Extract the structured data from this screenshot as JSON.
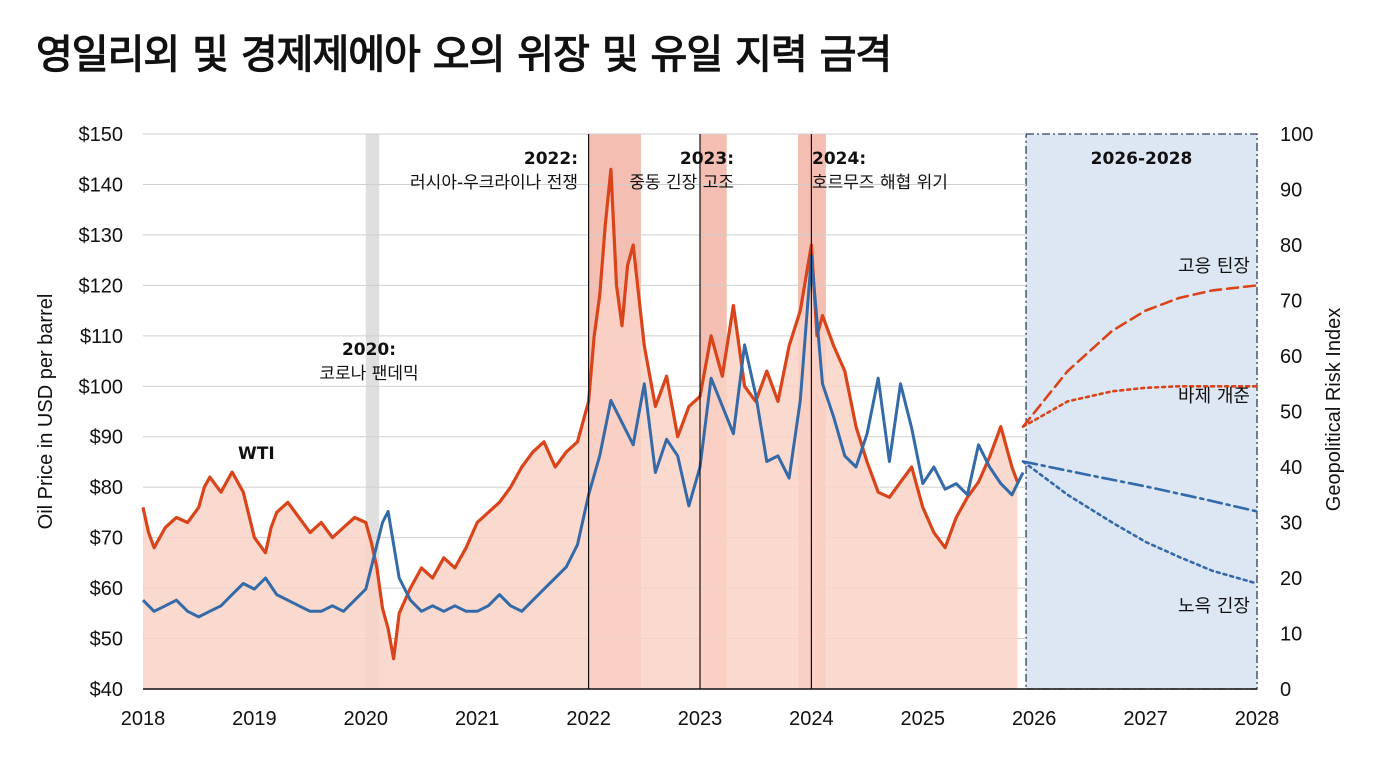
{
  "chart_data": {
    "type": "line",
    "title": "영일리외 및 경제제에아 오의 위장 및 유일 지력 금격",
    "ylabel": "Oil Price in USD per barrel",
    "y2label": "Geopolitical Risk Index",
    "x_ticks": [
      "2018",
      "2019",
      "2020",
      "2021",
      "2022",
      "2023",
      "2024",
      "2025",
      "2026",
      "2027",
      "2028"
    ],
    "xlim": [
      2018,
      2028
    ],
    "ylim": [
      40,
      150
    ],
    "y_ticks": [
      "$40",
      "$50",
      "$60",
      "$70",
      "$80",
      "$90",
      "$100",
      "$110",
      "$120",
      "$130",
      "$140",
      "$150"
    ],
    "y2lim": [
      0,
      100
    ],
    "y2_ticks": [
      "0",
      "10",
      "20",
      "30",
      "40",
      "50",
      "60",
      "70",
      "80",
      "90",
      "100"
    ],
    "grid": true,
    "colors": {
      "oil": "#d9441b",
      "oil_fill": "#f9d2c6",
      "risk": "#356aa8",
      "shade_event": "#f2b4a4",
      "shade_covid": "#d9d9d9",
      "forecast_bg": "#dde7f3"
    },
    "series": [
      {
        "name": "WTI",
        "axis": "left",
        "x": [
          2018.0,
          2018.05,
          2018.1,
          2018.2,
          2018.3,
          2018.4,
          2018.5,
          2018.55,
          2018.6,
          2018.7,
          2018.8,
          2018.9,
          2019.0,
          2019.1,
          2019.15,
          2019.2,
          2019.3,
          2019.4,
          2019.5,
          2019.6,
          2019.7,
          2019.8,
          2019.9,
          2020.0,
          2020.05,
          2020.1,
          2020.15,
          2020.2,
          2020.25,
          2020.3,
          2020.4,
          2020.5,
          2020.6,
          2020.7,
          2020.8,
          2020.9,
          2021.0,
          2021.1,
          2021.2,
          2021.3,
          2021.4,
          2021.5,
          2021.6,
          2021.7,
          2021.8,
          2021.9,
          2022.0,
          2022.05,
          2022.1,
          2022.15,
          2022.2,
          2022.25,
          2022.3,
          2022.35,
          2022.4,
          2022.45,
          2022.5,
          2022.6,
          2022.7,
          2022.8,
          2022.9,
          2023.0,
          2023.05,
          2023.1,
          2023.2,
          2023.3,
          2023.4,
          2023.5,
          2023.6,
          2023.7,
          2023.8,
          2023.9,
          2024.0,
          2024.05,
          2024.1,
          2024.2,
          2024.3,
          2024.4,
          2024.5,
          2024.6,
          2024.7,
          2024.8,
          2024.9,
          2025.0,
          2025.1,
          2025.2,
          2025.3,
          2025.4,
          2025.5,
          2025.6,
          2025.7,
          2025.8,
          2025.85
        ],
        "values": [
          76,
          71,
          68,
          72,
          74,
          73,
          76,
          80,
          82,
          79,
          83,
          79,
          70,
          67,
          72,
          75,
          77,
          74,
          71,
          73,
          70,
          72,
          74,
          73,
          69,
          64,
          56,
          52,
          46,
          55,
          60,
          64,
          62,
          66,
          64,
          68,
          73,
          75,
          77,
          80,
          84,
          87,
          89,
          84,
          87,
          89,
          97,
          110,
          118,
          132,
          143,
          120,
          112,
          124,
          128,
          118,
          108,
          96,
          102,
          90,
          96,
          98,
          104,
          110,
          102,
          116,
          100,
          97,
          103,
          97,
          108,
          115,
          128,
          110,
          114,
          108,
          103,
          92,
          85,
          79,
          78,
          81,
          84,
          76,
          71,
          68,
          74,
          78,
          81,
          86,
          92,
          84,
          81
        ]
      },
      {
        "name": "",
        "axis": "right",
        "x": [
          2018.0,
          2018.1,
          2018.2,
          2018.3,
          2018.4,
          2018.5,
          2018.6,
          2018.7,
          2018.8,
          2018.9,
          2019.0,
          2019.1,
          2019.2,
          2019.3,
          2019.4,
          2019.5,
          2019.6,
          2019.7,
          2019.8,
          2019.9,
          2020.0,
          2020.05,
          2020.1,
          2020.15,
          2020.2,
          2020.3,
          2020.4,
          2020.5,
          2020.6,
          2020.7,
          2020.8,
          2020.9,
          2021.0,
          2021.1,
          2021.2,
          2021.3,
          2021.4,
          2021.5,
          2021.6,
          2021.7,
          2021.8,
          2021.9,
          2022.0,
          2022.1,
          2022.2,
          2022.3,
          2022.4,
          2022.5,
          2022.6,
          2022.7,
          2022.8,
          2022.9,
          2023.0,
          2023.1,
          2023.2,
          2023.3,
          2023.4,
          2023.5,
          2023.6,
          2023.7,
          2023.8,
          2023.9,
          2024.0,
          2024.1,
          2024.2,
          2024.3,
          2024.4,
          2024.5,
          2024.6,
          2024.7,
          2024.8,
          2024.9,
          2025.0,
          2025.1,
          2025.2,
          2025.3,
          2025.4,
          2025.5,
          2025.6,
          2025.7,
          2025.8,
          2025.9
        ],
        "values": [
          16,
          14,
          15,
          16,
          14,
          13,
          14,
          15,
          17,
          19,
          18,
          20,
          17,
          16,
          15,
          14,
          14,
          15,
          14,
          16,
          18,
          22,
          26,
          30,
          32,
          20,
          16,
          14,
          15,
          14,
          15,
          14,
          14,
          15,
          17,
          15,
          14,
          16,
          18,
          20,
          22,
          26,
          35,
          42,
          52,
          48,
          44,
          55,
          39,
          45,
          42,
          33,
          40,
          56,
          51,
          46,
          62,
          53,
          41,
          42,
          38,
          52,
          78,
          55,
          49,
          42,
          40,
          46,
          56,
          41,
          55,
          47,
          37,
          40,
          36,
          37,
          35,
          44,
          40,
          37,
          35,
          39
        ]
      }
    ],
    "forecast": {
      "label": "2026-2028",
      "start_x": 2025.9,
      "end_x": 2028.0,
      "scenarios": [
        {
          "name": "고응 틴장",
          "style": "dashed",
          "color": "#d9441b",
          "x": [
            2025.9,
            2026.3,
            2026.7,
            2027.0,
            2027.3,
            2027.6,
            2028.0
          ],
          "values": [
            92,
            103,
            111,
            115,
            117.5,
            119,
            120
          ]
        },
        {
          "name": "바제 개준",
          "style": "dotted",
          "color": "#d9441b",
          "x": [
            2025.9,
            2026.3,
            2026.7,
            2027.0,
            2027.3,
            2027.6,
            2028.0
          ],
          "values": [
            92,
            97,
            99,
            99.7,
            100,
            100,
            100
          ]
        },
        {
          "name": "",
          "style": "dashdot",
          "color": "#356aa8",
          "x": [
            2025.9,
            2026.5,
            2027.0,
            2027.5,
            2028.0
          ],
          "values": [
            41,
            38.5,
            36.5,
            34.3,
            32
          ]
        },
        {
          "name": "노윽 긴장",
          "style": "dotted",
          "color": "#356aa8",
          "x": [
            2025.9,
            2026.3,
            2026.7,
            2027.0,
            2027.3,
            2027.6,
            2028.0
          ],
          "values": [
            41,
            35,
            30,
            26.5,
            23.8,
            21.3,
            19
          ]
        }
      ]
    },
    "event_bands": [
      {
        "x0": 2022.0,
        "x1": 2022.47,
        "kind": "event"
      },
      {
        "x0": 2023.0,
        "x1": 2023.24,
        "kind": "event"
      },
      {
        "x0": 2023.88,
        "x1": 2024.13,
        "kind": "event"
      },
      {
        "x0": 2020.0,
        "x1": 2020.12,
        "kind": "covid"
      }
    ],
    "event_lines": [
      2022.0,
      2023.0,
      2024.0
    ],
    "annotations": [
      {
        "x": 2020.0,
        "lines": [
          "2020:",
          "코로나 팬데믹"
        ]
      },
      {
        "x": 2022.0,
        "lines": [
          "2022:",
          "러시아-우크라이나 전쟁"
        ]
      },
      {
        "x": 2023.0,
        "lines": [
          "2023:",
          "중동 긴장 고조"
        ]
      },
      {
        "x": 2024.0,
        "lines": [
          "2024:",
          "호르무즈 해협 위기"
        ]
      }
    ]
  }
}
